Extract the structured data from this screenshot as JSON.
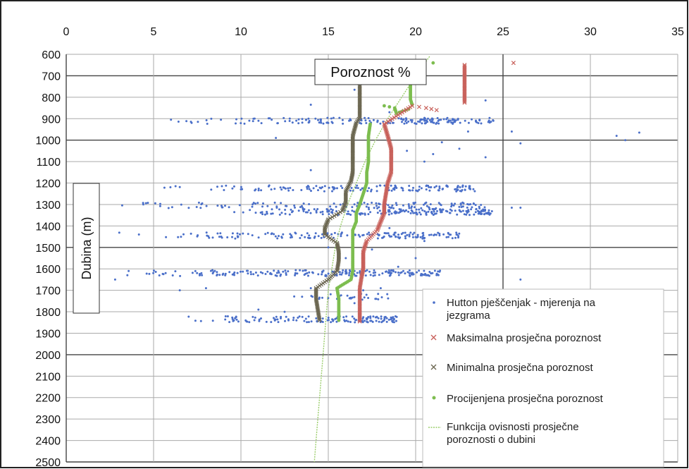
{
  "chart_data": {
    "type": "scatter",
    "title": "Poroznost %",
    "ylabel": "Dubina (m)",
    "xlabel": "",
    "x_axis_position": "top",
    "y_axis_inverted": true,
    "xlim": [
      0,
      35
    ],
    "ylim": [
      600,
      2500
    ],
    "x_ticks": [
      0,
      5,
      10,
      15,
      20,
      25,
      30,
      35
    ],
    "y_ticks": [
      600,
      700,
      800,
      900,
      1000,
      1100,
      1200,
      1300,
      1400,
      1500,
      1600,
      1700,
      1800,
      1900,
      2000,
      2100,
      2200,
      2300,
      2400,
      2500
    ],
    "grid": true,
    "legend_position": "bottom-right",
    "colors": {
      "measurements": "#4a6fc9",
      "max": "#c8605a",
      "min": "#6b6650",
      "estimated": "#7dbd4f",
      "trend": "#9acd6a"
    },
    "bands": [
      {
        "depth": 910,
        "xmin": 4.5,
        "xmax": 24.5,
        "count": 180
      },
      {
        "depth": 1225,
        "xmin": 4.5,
        "xmax": 23.5,
        "count": 150
      },
      {
        "depth": 1305,
        "xmin": 2.5,
        "xmax": 24.0,
        "count": 130
      },
      {
        "depth": 1335,
        "xmin": 9.0,
        "xmax": 24.5,
        "count": 200
      },
      {
        "depth": 1445,
        "xmin": 2.0,
        "xmax": 22.5,
        "count": 160
      },
      {
        "depth": 1620,
        "xmin": 3.0,
        "xmax": 21.5,
        "count": 200
      },
      {
        "depth": 1730,
        "xmin": 13.0,
        "xmax": 18.5,
        "count": 30
      },
      {
        "depth": 1835,
        "xmin": 6.5,
        "xmax": 19.0,
        "count": 140
      }
    ],
    "series": [
      {
        "name": "Hutton pješčenjak - mjerenja na jezgrama",
        "marker": "dot",
        "points": [
          [
            14.0,
            835
          ],
          [
            16.5,
            765
          ],
          [
            18.5,
            870
          ],
          [
            24.0,
            815
          ],
          [
            25.5,
            960
          ],
          [
            26.0,
            1015
          ],
          [
            31.5,
            980
          ],
          [
            32.0,
            1000
          ],
          [
            32.8,
            965
          ],
          [
            12.0,
            990
          ],
          [
            14.0,
            1140
          ],
          [
            24.0,
            1080
          ],
          [
            25.5,
            1315
          ],
          [
            26.0,
            1315
          ],
          [
            26.0,
            1650
          ],
          [
            2.8,
            1650
          ],
          [
            3.5,
            1630
          ],
          [
            20.0,
            1550
          ],
          [
            20.5,
            1470
          ],
          [
            18.5,
            1410
          ],
          [
            6.5,
            1700
          ],
          [
            8.0,
            1690
          ],
          [
            22.5,
            1040
          ],
          [
            21.0,
            1065
          ],
          [
            20.5,
            1100
          ],
          [
            23.0,
            960
          ],
          [
            21.5,
            1010
          ],
          [
            19.5,
            1050
          ],
          [
            16.0,
            1550
          ],
          [
            15.5,
            1740
          ],
          [
            16.5,
            1760
          ],
          [
            17.0,
            1700
          ],
          [
            14.0,
            1690
          ],
          [
            13.5,
            1730
          ],
          [
            11.0,
            1790
          ],
          [
            12.5,
            1800
          ],
          [
            18.0,
            1690
          ],
          [
            15.0,
            1500
          ],
          [
            17.5,
            1510
          ],
          [
            19.0,
            1590
          ]
        ]
      },
      {
        "name": "Maksimalna prosječna poroznost",
        "marker": "x",
        "points": [
          [
            22.8,
            650
          ],
          [
            22.8,
            675
          ],
          [
            22.8,
            700
          ],
          [
            22.8,
            725
          ],
          [
            22.8,
            750
          ],
          [
            22.8,
            775
          ],
          [
            22.8,
            800
          ],
          [
            22.8,
            825
          ],
          [
            25.6,
            640
          ],
          [
            21.2,
            860
          ],
          [
            20.6,
            850
          ],
          [
            19.8,
            840
          ],
          [
            18.2,
            925
          ],
          [
            18.4,
            980
          ],
          [
            18.6,
            1040
          ],
          [
            18.6,
            1100
          ],
          [
            18.6,
            1150
          ],
          [
            18.4,
            1200
          ],
          [
            18.3,
            1250
          ],
          [
            18.2,
            1300
          ],
          [
            18.2,
            1340
          ],
          [
            18.0,
            1380
          ],
          [
            17.8,
            1420
          ],
          [
            17.2,
            1470
          ],
          [
            17.0,
            1520
          ],
          [
            17.0,
            1560
          ],
          [
            17.0,
            1600
          ],
          [
            16.9,
            1640
          ],
          [
            16.8,
            1690
          ],
          [
            16.8,
            1740
          ],
          [
            16.8,
            1790
          ],
          [
            16.8,
            1845
          ]
        ]
      },
      {
        "name": "Minimalna prosječna poroznost",
        "marker": "x",
        "points": [
          [
            16.8,
            745
          ],
          [
            16.8,
            770
          ],
          [
            16.8,
            795
          ],
          [
            16.8,
            820
          ],
          [
            16.8,
            845
          ],
          [
            16.8,
            870
          ],
          [
            16.8,
            895
          ],
          [
            16.6,
            920
          ],
          [
            16.4,
            980
          ],
          [
            16.4,
            1040
          ],
          [
            16.4,
            1100
          ],
          [
            16.4,
            1150
          ],
          [
            16.3,
            1190
          ],
          [
            16.0,
            1240
          ],
          [
            16.0,
            1290
          ],
          [
            15.8,
            1330
          ],
          [
            15.0,
            1370
          ],
          [
            14.8,
            1410
          ],
          [
            14.8,
            1440
          ],
          [
            15.5,
            1480
          ],
          [
            15.6,
            1520
          ],
          [
            15.6,
            1560
          ],
          [
            15.5,
            1610
          ],
          [
            15.0,
            1650
          ],
          [
            14.3,
            1690
          ],
          [
            14.3,
            1740
          ],
          [
            14.4,
            1790
          ],
          [
            14.5,
            1840
          ]
        ]
      },
      {
        "name": "Procijenjena prosječna poroznost",
        "marker": "dot",
        "points": [
          [
            19.7,
            735
          ],
          [
            19.7,
            760
          ],
          [
            19.7,
            785
          ],
          [
            19.7,
            810
          ],
          [
            19.8,
            835
          ],
          [
            18.2,
            840
          ],
          [
            18.8,
            850
          ],
          [
            18.9,
            875
          ],
          [
            19.6,
            855
          ],
          [
            21.0,
            640
          ],
          [
            17.4,
            925
          ],
          [
            17.3,
            980
          ],
          [
            17.3,
            1040
          ],
          [
            17.3,
            1100
          ],
          [
            17.2,
            1150
          ],
          [
            17.2,
            1200
          ],
          [
            17.0,
            1250
          ],
          [
            16.8,
            1300
          ],
          [
            16.6,
            1340
          ],
          [
            16.6,
            1380
          ],
          [
            16.4,
            1420
          ],
          [
            16.4,
            1460
          ],
          [
            16.4,
            1510
          ],
          [
            16.4,
            1560
          ],
          [
            16.4,
            1610
          ],
          [
            16.3,
            1650
          ],
          [
            15.5,
            1690
          ],
          [
            15.6,
            1740
          ],
          [
            15.6,
            1790
          ],
          [
            15.6,
            1840
          ]
        ]
      },
      {
        "name": "Funkcija ovisnosti prosječne poroznosti o dubini",
        "marker": "line",
        "points": [
          [
            20.8,
            610
          ],
          [
            20.0,
            700
          ],
          [
            19.2,
            800
          ],
          [
            18.4,
            900
          ],
          [
            17.7,
            1000
          ],
          [
            17.1,
            1100
          ],
          [
            16.6,
            1200
          ],
          [
            16.1,
            1300
          ],
          [
            15.7,
            1400
          ],
          [
            15.4,
            1500
          ],
          [
            15.2,
            1600
          ],
          [
            15.0,
            1700
          ],
          [
            14.9,
            1800
          ],
          [
            14.8,
            1900
          ],
          [
            14.7,
            2000
          ],
          [
            14.6,
            2100
          ],
          [
            14.5,
            2200
          ],
          [
            14.4,
            2300
          ],
          [
            14.3,
            2400
          ],
          [
            14.2,
            2500
          ]
        ]
      }
    ]
  }
}
